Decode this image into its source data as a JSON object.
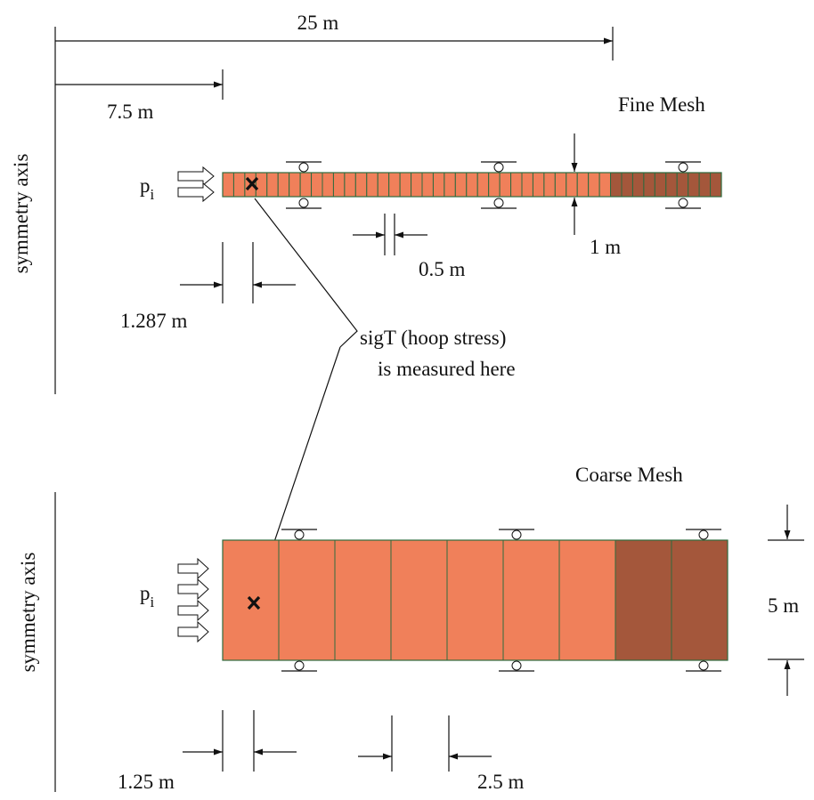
{
  "colors": {
    "cell_light": "#f0805a",
    "cell_dark": "#a4573b",
    "cell_border": "#2e6b3e",
    "line": "#111111"
  },
  "labels": {
    "dim_total": "25 m",
    "dim_inner": "7.5 m",
    "fine_title": "Fine Mesh",
    "coarse_title": "Coarse Mesh",
    "axis_top": "symmetry axis",
    "axis_bottom": "symmetry axis",
    "p_main": "p",
    "p_sub": "i",
    "fine_cell": "0.5 m",
    "fine_thickness": "1 m",
    "fine_point": "1.287 m",
    "note_line1": "sigT (hoop stress)",
    "note_line2": "is measured here",
    "coarse_thickness": "5 m",
    "coarse_point": "1.25 m",
    "coarse_cell": "2.5 m"
  },
  "mesh": {
    "fine": {
      "light_cells": 35,
      "dark_cells": 10
    },
    "coarse": {
      "light_cells": 7,
      "dark_cells": 2
    }
  }
}
